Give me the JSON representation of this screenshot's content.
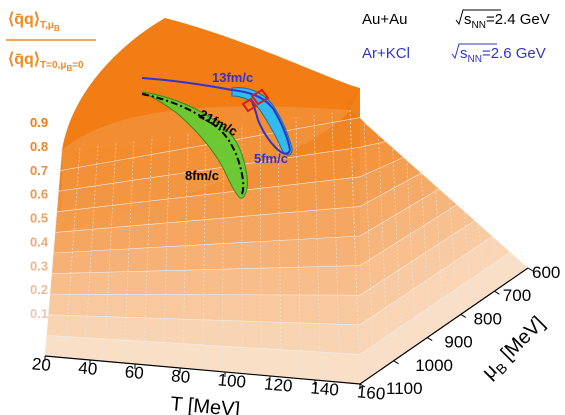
{
  "chart_data": {
    "type": "surface3d",
    "title": "",
    "z_axis": {
      "label": "⟨q̄q⟩ T,μB / ⟨q̄q⟩ T=0,μB=0",
      "label_num": "⟨q̄q⟩",
      "label_num_sub": "T,μ",
      "label_num_subsub": "B",
      "label_den": "⟨q̄q⟩",
      "label_den_sub": "T=0,μ",
      "label_den_subsub": "B",
      "label_den_sub_tail": "=0",
      "ticks": [
        "0.9",
        "0.8",
        "0.7",
        "0.6",
        "0.5",
        "0.4",
        "0.3",
        "0.2",
        "0.1"
      ],
      "range": [
        0,
        1
      ]
    },
    "x_axis": {
      "label": "T [MeV]",
      "ticks": [
        "20",
        "40",
        "60",
        "80",
        "100",
        "120",
        "140",
        "160"
      ],
      "range": [
        20,
        160
      ]
    },
    "y_axis": {
      "label_mu": "μ",
      "label_mu_sub": "B",
      "label_unit": " [MeV]",
      "ticks": [
        "600",
        "700",
        "800",
        "900",
        "1000",
        "1100"
      ],
      "range": [
        600,
        1100
      ]
    },
    "legend": [
      {
        "text_pre": "Au+Au ",
        "sqrt_s": "s",
        "sqrt_sub": "NN",
        "text_post": "=2.4 GeV",
        "color": "#000000"
      },
      {
        "text_pre": "Ar+KCl ",
        "sqrt_s": "s",
        "sqrt_sub": "NN",
        "text_post": "=2.6 GeV",
        "color": "#3333cc"
      }
    ],
    "annotations": [
      {
        "text": "13fm/c",
        "color": "#3333cc"
      },
      {
        "text": "21fm/c",
        "color": "#000000"
      },
      {
        "text": "5fm/c",
        "color": "#3333cc"
      },
      {
        "text": "8fm/c",
        "color": "#000000"
      }
    ],
    "series": [
      {
        "name": "Au+Au √sNN=2.4 GeV",
        "color": "#000000",
        "band_color": "#66cc33"
      },
      {
        "name": "Ar+KCl √sNN=2.6 GeV",
        "color": "#3333cc",
        "band_color": "#33bbee"
      }
    ],
    "colors": {
      "surface_dark": "#f07a10",
      "surface_light": "#fbeee4",
      "grid": "#d9d9d9",
      "zlabel": "#f08a24"
    }
  }
}
